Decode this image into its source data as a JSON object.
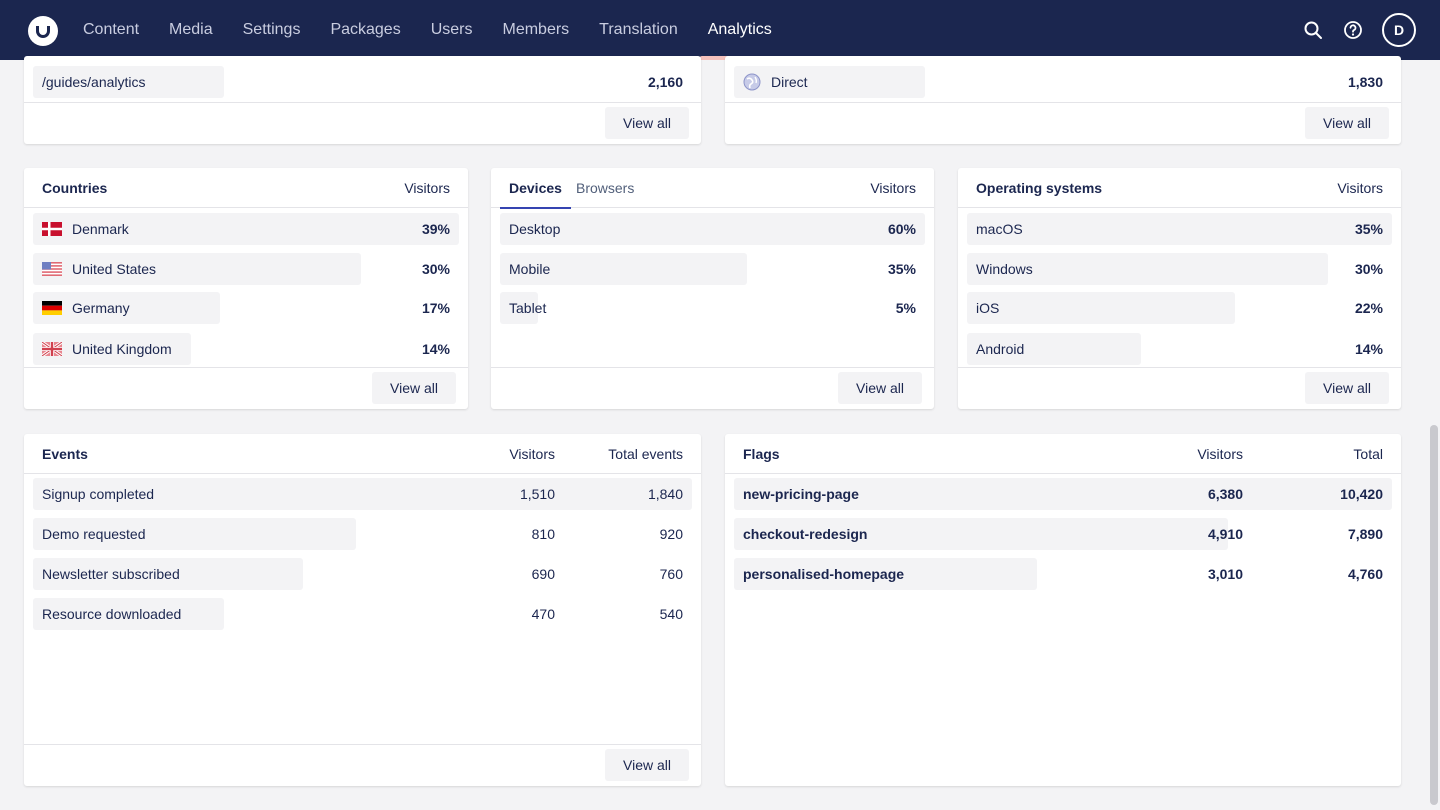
{
  "nav": {
    "items": [
      "Content",
      "Media",
      "Settings",
      "Packages",
      "Users",
      "Members",
      "Translation",
      "Analytics"
    ],
    "active": "Analytics"
  },
  "user": {
    "initial": "D"
  },
  "pages_card": {
    "row_label": "/guides/analytics",
    "row_value": "2,160",
    "bar_fraction": 0.29,
    "view_all": "View all"
  },
  "sources_card": {
    "row_label": "Direct",
    "row_value": "1,830",
    "bar_fraction": 0.29,
    "view_all": "View all"
  },
  "countries": {
    "title": "Countries",
    "col": "Visitors",
    "rows": [
      {
        "label": "Denmark",
        "value": "39%",
        "fraction": 1.0,
        "flag": "denmark-flag-icon"
      },
      {
        "label": "United States",
        "value": "30%",
        "fraction": 0.77,
        "flag": "usa-flag-icon"
      },
      {
        "label": "Germany",
        "value": "17%",
        "fraction": 0.44,
        "flag": "germany-flag-icon"
      },
      {
        "label": "United Kingdom",
        "value": "14%",
        "fraction": 0.37,
        "flag": "uk-flag-icon"
      }
    ],
    "view_all": "View all"
  },
  "devices": {
    "tabs": [
      "Devices",
      "Browsers"
    ],
    "col": "Visitors",
    "rows": [
      {
        "label": "Desktop",
        "value": "60%",
        "fraction": 1.0
      },
      {
        "label": "Mobile",
        "value": "35%",
        "fraction": 0.58
      },
      {
        "label": "Tablet",
        "value": "5%",
        "fraction": 0.09
      }
    ],
    "view_all": "View all"
  },
  "os": {
    "title": "Operating systems",
    "col": "Visitors",
    "rows": [
      {
        "label": "macOS",
        "value": "35%",
        "fraction": 1.0
      },
      {
        "label": "Windows",
        "value": "30%",
        "fraction": 0.85
      },
      {
        "label": "iOS",
        "value": "22%",
        "fraction": 0.63
      },
      {
        "label": "Android",
        "value": "14%",
        "fraction": 0.41
      }
    ],
    "view_all": "View all"
  },
  "events": {
    "title": "Events",
    "col1": "Visitors",
    "col2": "Total events",
    "rows": [
      {
        "label": "Signup completed",
        "visitors": "1,510",
        "total": "1,840",
        "fraction": 1.0
      },
      {
        "label": "Demo requested",
        "visitors": "810",
        "total": "920",
        "fraction": 0.49
      },
      {
        "label": "Newsletter subscribed",
        "visitors": "690",
        "total": "760",
        "fraction": 0.41
      },
      {
        "label": "Resource downloaded",
        "visitors": "470",
        "total": "540",
        "fraction": 0.29
      }
    ],
    "view_all": "View all"
  },
  "flags": {
    "title": "Flags",
    "col1": "Visitors",
    "col2": "Total",
    "rows": [
      {
        "label": "new-pricing-page",
        "visitors": "6,380",
        "total": "10,420",
        "fraction": 1.0
      },
      {
        "label": "checkout-redesign",
        "visitors": "4,910",
        "total": "7,890",
        "fraction": 0.75
      },
      {
        "label": "personalised-homepage",
        "visitors": "3,010",
        "total": "4,760",
        "fraction": 0.46
      }
    ]
  },
  "colors": {
    "header": "#1b264f",
    "accent": "#f5c1bc",
    "tab_underline": "#3544b1",
    "bar": "#f3f3f5"
  }
}
